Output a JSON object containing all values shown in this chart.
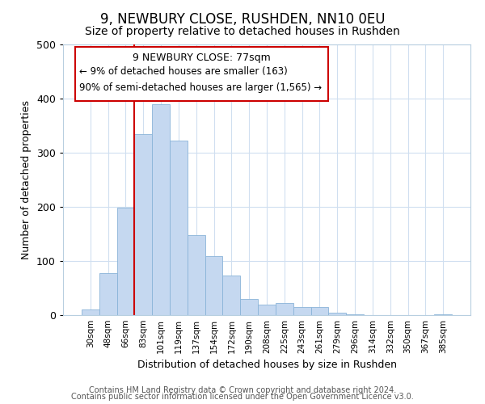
{
  "title": "9, NEWBURY CLOSE, RUSHDEN, NN10 0EU",
  "subtitle": "Size of property relative to detached houses in Rushden",
  "xlabel": "Distribution of detached houses by size in Rushden",
  "ylabel": "Number of detached properties",
  "bar_labels": [
    "30sqm",
    "48sqm",
    "66sqm",
    "83sqm",
    "101sqm",
    "119sqm",
    "137sqm",
    "154sqm",
    "172sqm",
    "190sqm",
    "208sqm",
    "225sqm",
    "243sqm",
    "261sqm",
    "279sqm",
    "296sqm",
    "314sqm",
    "332sqm",
    "350sqm",
    "367sqm",
    "385sqm"
  ],
  "bar_values": [
    10,
    78,
    198,
    335,
    390,
    323,
    148,
    109,
    73,
    30,
    20,
    23,
    15,
    15,
    5,
    1,
    0,
    0,
    0,
    0,
    1
  ],
  "bar_color": "#c5d8f0",
  "bar_edge_color": "#8ab4d8",
  "grid_color": "#d0dff0",
  "vline_x_index": 3,
  "vline_color": "#cc0000",
  "annotation_title": "9 NEWBURY CLOSE: 77sqm",
  "annotation_line1": "← 9% of detached houses are smaller (163)",
  "annotation_line2": "90% of semi-detached houses are larger (1,565) →",
  "annotation_box_color": "#ffffff",
  "annotation_box_edge": "#cc0000",
  "footer1": "Contains HM Land Registry data © Crown copyright and database right 2024.",
  "footer2": "Contains public sector information licensed under the Open Government Licence v3.0.",
  "ylim": [
    0,
    500
  ],
  "title_fontsize": 12,
  "subtitle_fontsize": 10,
  "footer_fontsize": 7
}
